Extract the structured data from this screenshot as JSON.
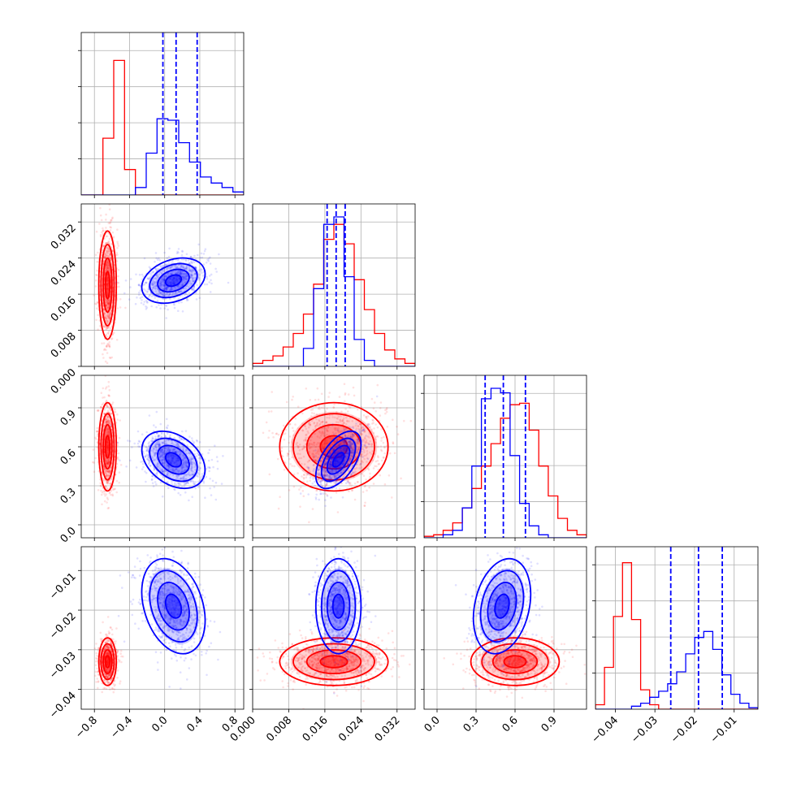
{
  "chart_data": {
    "type": "corner",
    "grid": true,
    "series": [
      {
        "color": "#ff0000",
        "params": [
          {
            "mean": -0.65,
            "sd": 0.05
          },
          {
            "mean": 0.018,
            "sd": 0.006
          },
          {
            "mean": 0.6,
            "sd": 0.17
          },
          {
            "mean": -0.033,
            "sd": 0.003
          }
        ],
        "hist": [
          [
            0,
            0,
            0.38,
            0.9,
            0.17,
            0,
            0,
            0,
            0,
            0,
            0,
            0,
            0,
            0,
            0
          ],
          [
            0.02,
            0.04,
            0.07,
            0.13,
            0.22,
            0.35,
            0.55,
            0.85,
            0.95,
            0.82,
            0.58,
            0.38,
            0.22,
            0.11,
            0.05,
            0.02
          ],
          [
            0.01,
            0.02,
            0.05,
            0.1,
            0.2,
            0.33,
            0.48,
            0.63,
            0.8,
            0.89,
            0.9,
            0.72,
            0.48,
            0.28,
            0.13,
            0.05,
            0.02
          ],
          [
            0.03,
            0.28,
            0.62,
            0.98,
            0.6,
            0.13,
            0.03,
            0,
            0,
            0,
            0,
            0,
            0,
            0,
            0,
            0,
            0,
            0
          ]
        ]
      },
      {
        "color": "#0000ff",
        "params": [
          {
            "mean": 0.1,
            "sd": 0.18
          },
          {
            "mean": 0.019,
            "sd": 0.0025
          },
          {
            "mean": 0.5,
            "sd": 0.11
          },
          {
            "mean": -0.019,
            "sd": 0.006
          }
        ],
        "quantiles": [
          [
            -0.02,
            0.13,
            0.37
          ],
          [
            0.0165,
            0.0185,
            0.0205
          ],
          [
            0.37,
            0.51,
            0.68
          ],
          [
            -0.026,
            -0.019,
            -0.013
          ]
        ],
        "hist": [
          [
            0,
            0,
            0,
            0,
            0,
            0.05,
            0.28,
            0.51,
            0.5,
            0.35,
            0.22,
            0.12,
            0.08,
            0.05,
            0.02
          ],
          [
            0,
            0,
            0,
            0,
            0,
            0.12,
            0.52,
            0.95,
            1.0,
            0.6,
            0.18,
            0.04,
            0,
            0,
            0,
            0
          ],
          [
            0,
            0,
            0.02,
            0.05,
            0.2,
            0.48,
            0.93,
            1.0,
            0.97,
            0.55,
            0.23,
            0.08,
            0.02,
            0,
            0,
            0,
            0
          ],
          [
            0,
            0,
            0,
            0,
            0.02,
            0.04,
            0.08,
            0.12,
            0.17,
            0.25,
            0.37,
            0.48,
            0.52,
            0.4,
            0.23,
            0.1,
            0.04,
            0.01
          ]
        ],
        "correlations": [
          [
            0,
            1,
            0.3
          ],
          [
            0,
            2,
            -0.35
          ],
          [
            0,
            3,
            -0.3
          ],
          [
            1,
            2,
            0.55
          ],
          [
            2,
            3,
            0.25
          ]
        ]
      }
    ],
    "axes": [
      {
        "range": [
          -0.95,
          0.9
        ],
        "ticks": [
          -0.8,
          -0.4,
          0.0,
          0.4,
          0.8
        ],
        "tick_labels": [
          "−0.8",
          "−0.4",
          "0.0",
          "0.4",
          "0.8"
        ]
      },
      {
        "range": [
          0.0,
          0.036
        ],
        "ticks": [
          0.0,
          0.008,
          0.016,
          0.024,
          0.032
        ],
        "tick_labels": [
          "0.000",
          "0.008",
          "0.016",
          "0.024",
          "0.032"
        ]
      },
      {
        "range": [
          -0.1,
          1.15
        ],
        "ticks": [
          0.0,
          0.3,
          0.6,
          0.9
        ],
        "tick_labels": [
          "0.0",
          "0.3",
          "0.6",
          "0.9"
        ]
      },
      {
        "range": [
          -0.045,
          -0.004
        ],
        "ticks": [
          -0.04,
          -0.03,
          -0.02,
          -0.01
        ],
        "tick_labels": [
          "−0.04",
          "−0.03",
          "−0.02",
          "−0.01"
        ]
      }
    ]
  }
}
